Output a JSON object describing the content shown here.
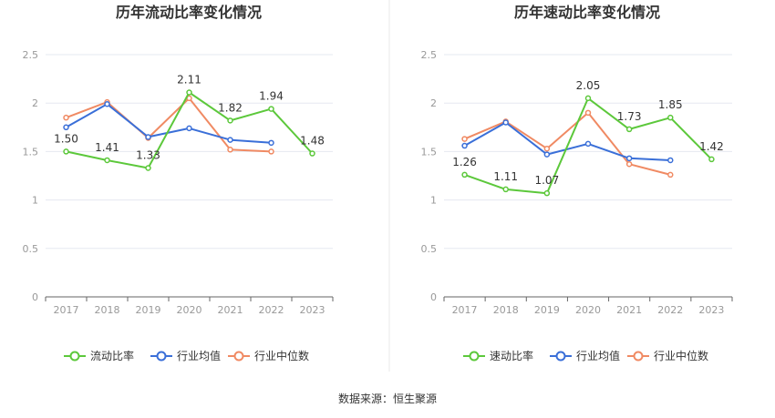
{
  "colors": {
    "company": "#5cc83b",
    "industry_avg": "#3a6fd8",
    "industry_median": "#f08a63",
    "grid": "#e6e8f0",
    "axis": "#666666",
    "divider": "#e8e8e8"
  },
  "footer": {
    "source": "数据来源：恒生聚源"
  },
  "chart_data": [
    {
      "type": "line",
      "title": "历年流动比率变化情况",
      "categories": [
        "2017",
        "2018",
        "2019",
        "2020",
        "2021",
        "2022",
        "2023"
      ],
      "ylim": [
        0,
        2.5
      ],
      "yticks": [
        "0",
        "0.5",
        "1",
        "1.5",
        "2",
        "2.5"
      ],
      "grid": true,
      "legend_position": "bottom",
      "series": [
        {
          "name": "流动比率",
          "values": [
            1.5,
            1.41,
            1.33,
            2.11,
            1.82,
            1.94,
            1.48
          ],
          "labels": [
            "1.50",
            "1.41",
            "1.33",
            "2.11",
            "1.82",
            "1.94",
            "1.48"
          ]
        },
        {
          "name": "行业均值",
          "values": [
            1.75,
            1.99,
            1.65,
            1.74,
            1.62,
            1.59,
            null
          ]
        },
        {
          "name": "行业中位数",
          "values": [
            1.85,
            2.01,
            1.64,
            2.05,
            1.52,
            1.5,
            null
          ]
        }
      ]
    },
    {
      "type": "line",
      "title": "历年速动比率变化情况",
      "categories": [
        "2017",
        "2018",
        "2019",
        "2020",
        "2021",
        "2022",
        "2023"
      ],
      "ylim": [
        0,
        2.5
      ],
      "yticks": [
        "0",
        "0.5",
        "1",
        "1.5",
        "2",
        "2.5"
      ],
      "grid": true,
      "legend_position": "bottom",
      "series": [
        {
          "name": "速动比率",
          "values": [
            1.26,
            1.11,
            1.07,
            2.05,
            1.73,
            1.85,
            1.42
          ],
          "labels": [
            "1.26",
            "1.11",
            "1.07",
            "2.05",
            "1.73",
            "1.85",
            "1.42"
          ]
        },
        {
          "name": "行业均值",
          "values": [
            1.56,
            1.8,
            1.47,
            1.58,
            1.43,
            1.41,
            null
          ]
        },
        {
          "name": "行业中位数",
          "values": [
            1.63,
            1.81,
            1.53,
            1.9,
            1.37,
            1.26,
            null
          ]
        }
      ]
    }
  ]
}
